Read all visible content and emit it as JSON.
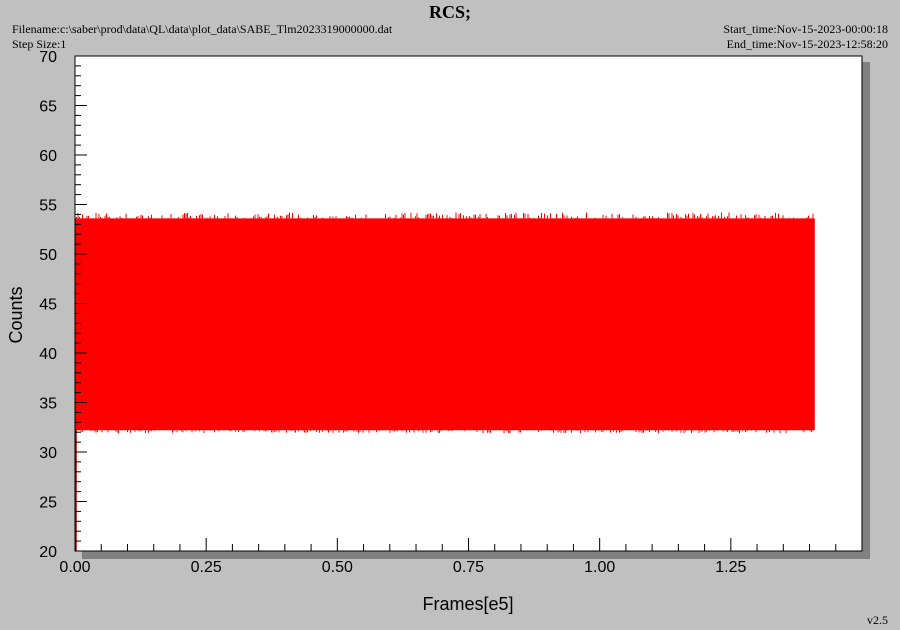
{
  "header": {
    "title": "RCS;",
    "filename": "Filename:c:\\saber\\prod\\data\\QL\\data\\plot_data\\SABE_Tlm2023319000000.dat",
    "step_size": "Step Size:1",
    "start_time": "Start_time:Nov-15-2023-00:00:18",
    "end_time": "End_time:Nov-15-2023-12:58:20"
  },
  "footer": {
    "version": "v2.5"
  },
  "colors": {
    "series": "#ff0000",
    "plot_bg": "#ffffff",
    "frame_bg": "#c0c0c0",
    "shadow": "#808080"
  },
  "chart_data": {
    "type": "line",
    "title": "RCS;",
    "xlabel": "Frames[e5]",
    "ylabel": "Counts",
    "xlim": [
      0.0,
      1.5
    ],
    "ylim": [
      20,
      70
    ],
    "x_ticks": [
      "0.00",
      "0.25",
      "0.50",
      "0.75",
      "1.00",
      "1.25"
    ],
    "y_ticks": [
      "20",
      "25",
      "30",
      "35",
      "40",
      "45",
      "50",
      "55",
      "60",
      "65",
      "70"
    ],
    "grid": false,
    "series": [
      {
        "x_range": [
          0.0,
          1.41
        ],
        "band_min": 32.2,
        "band_max": 53.6,
        "peak_max": 54.2,
        "dip_min": 31.9,
        "initial_point": [
          0.0,
          20.0
        ]
      }
    ]
  }
}
